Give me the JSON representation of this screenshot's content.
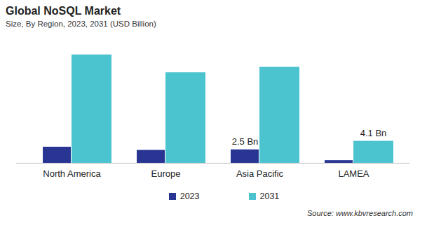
{
  "chart_data": {
    "type": "bar",
    "title": "Global NoSQL Market",
    "subtitle": "Size, By Region, 2023, 2031 (USD Billion)",
    "categories": [
      "North America",
      "Europe",
      "Asia Pacific",
      "LAMEA"
    ],
    "series": [
      {
        "name": "2023",
        "color": "#283593",
        "values": [
          3.0,
          2.4,
          2.5,
          0.5
        ],
        "value_labels": [
          null,
          null,
          "2.5 Bn",
          null
        ]
      },
      {
        "name": "2031",
        "color": "#4cc4d0",
        "values": [
          20.2,
          16.9,
          17.9,
          4.1
        ],
        "value_labels": [
          null,
          null,
          null,
          "4.1 Bn"
        ]
      }
    ],
    "data_labels": true,
    "tick_labels": "x",
    "grid": false,
    "legend": "bottom",
    "source": "Source: www.kbvresearch.com"
  }
}
